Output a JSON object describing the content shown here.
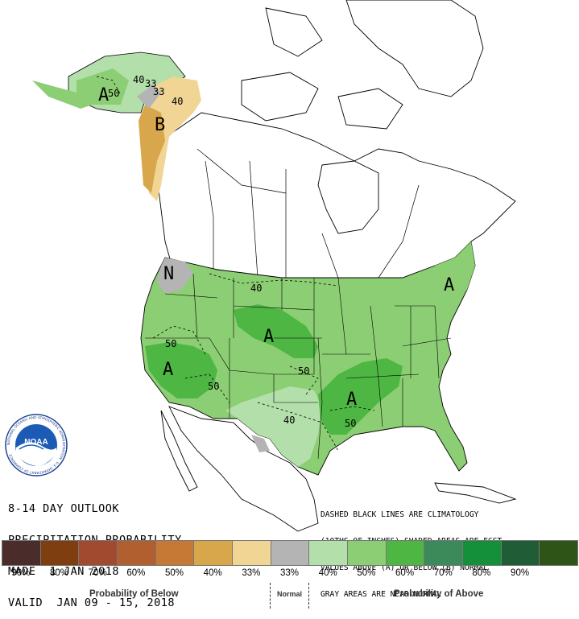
{
  "title_lines": [
    "8-14 DAY OUTLOOK",
    "PRECIPITATION PROBABILITY",
    "MADE  1 JAN 2018",
    "VALID  JAN 09 - 15, 2018"
  ],
  "notes_lines": [
    "DASHED BLACK LINES ARE CLIMATOLOGY",
    "(10THS OF INCHES) SHADED AREAS ARE FCST",
    "VALUES ABOVE (A) OR BELOW (B) NORMAL",
    "GRAY AREAS ARE NEAR-NORMAL"
  ],
  "map_labels": {
    "ak_40": "40",
    "ak_33a": "33",
    "ak_33b": "33",
    "ak_40b": "40",
    "ak_50": "50",
    "ak_A": "A",
    "ak_B": "B",
    "ak_N": "N",
    "us_40_north": "40",
    "us_50_west": "50",
    "us_50_sw": "50",
    "us_50_plains": "50",
    "us_40_south": "40",
    "us_50_se": "50",
    "A_west": "A",
    "A_north": "A",
    "A_south": "A",
    "A_east": "A",
    "N_nw": "N"
  },
  "logo": {
    "text": "NOAA",
    "ring_text": "NATIONAL OCEANIC AND ATMOSPHERIC ADMINISTRATION · U.S. DEPARTMENT OF COMMERCE"
  },
  "legend": {
    "swatches": [
      "#4a2c2a",
      "#7f3e10",
      "#a24a30",
      "#b25f2f",
      "#c67835",
      "#d9a74b",
      "#f1d595",
      "#b4b4b4",
      "#b3dfab",
      "#8cce73",
      "#4eb642",
      "#3c8a5a",
      "#14903a",
      "#205c35",
      "#2e5418"
    ],
    "labels": [
      "90%",
      "80%",
      "70%",
      "60%",
      "50%",
      "40%",
      "33%",
      "33%",
      "40%",
      "50%",
      "60%",
      "70%",
      "80%",
      "90%",
      ""
    ],
    "below_caption": "Probability of Below",
    "normal_caption": "Normal",
    "above_caption": "Probability of Above"
  },
  "colors": {
    "near_normal": "#b4b4b4",
    "below_33": "#f1d595",
    "below_40": "#d9a74b",
    "above_33": "#b3dfab",
    "above_40": "#8cce73",
    "above_50": "#4eb642"
  }
}
